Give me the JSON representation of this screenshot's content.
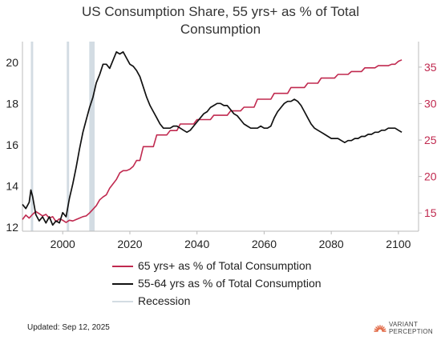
{
  "chart_data": {
    "type": "line",
    "title_lines": [
      "US Consumption Share, 55 yrs+ as % of Total",
      "Consumption"
    ],
    "x_range": [
      1988,
      2106
    ],
    "x_ticks": [
      2000,
      2020,
      2040,
      2060,
      2080,
      2100
    ],
    "y_left": {
      "range": [
        11.8,
        21.0
      ],
      "ticks": [
        12,
        14,
        16,
        18,
        20
      ]
    },
    "y_right": {
      "range": [
        12.5,
        38.5
      ],
      "ticks": [
        15,
        20,
        25,
        30,
        35
      ],
      "color": "#c0294f"
    },
    "grid": false,
    "legend_position": "bottom",
    "recessions": [
      [
        1990.5,
        1991.2
      ],
      [
        2001.2,
        2001.9
      ],
      [
        2007.9,
        2009.5
      ]
    ],
    "series": [
      {
        "name": "65 yrs+ as % of Total Consumption",
        "axis": "right",
        "color": "#c0294f",
        "points": [
          [
            1988,
            14.1
          ],
          [
            1989,
            14.7
          ],
          [
            1990,
            14.3
          ],
          [
            1991,
            14.8
          ],
          [
            1992,
            15.2
          ],
          [
            1993,
            14.9
          ],
          [
            1994,
            14.6
          ],
          [
            1995,
            14.8
          ],
          [
            1996,
            14.3
          ],
          [
            1997,
            14.5
          ],
          [
            1998,
            13.8
          ],
          [
            1999,
            14.2
          ],
          [
            2000,
            14.0
          ],
          [
            2001,
            13.7
          ],
          [
            2002,
            14.0
          ],
          [
            2003,
            13.9
          ],
          [
            2004,
            14.1
          ],
          [
            2005,
            14.3
          ],
          [
            2006,
            14.5
          ],
          [
            2007,
            14.6
          ],
          [
            2008,
            15.0
          ],
          [
            2009,
            15.5
          ],
          [
            2010,
            16.0
          ],
          [
            2011,
            16.8
          ],
          [
            2012,
            17.2
          ],
          [
            2013,
            17.5
          ],
          [
            2014,
            18.4
          ],
          [
            2015,
            19.0
          ],
          [
            2016,
            19.6
          ],
          [
            2017,
            20.5
          ],
          [
            2018,
            20.8
          ],
          [
            2019,
            20.8
          ],
          [
            2020,
            21.0
          ],
          [
            2021,
            21.4
          ],
          [
            2022,
            22.2
          ],
          [
            2023,
            22.2
          ],
          [
            2024,
            24.1
          ],
          [
            2025,
            24.1
          ],
          [
            2026,
            24.1
          ],
          [
            2027,
            24.1
          ],
          [
            2028,
            25.7
          ],
          [
            2029,
            25.7
          ],
          [
            2030,
            25.7
          ],
          [
            2031,
            25.7
          ],
          [
            2032,
            26.3
          ],
          [
            2033,
            26.3
          ],
          [
            2034,
            26.3
          ],
          [
            2035,
            27.2
          ],
          [
            2036,
            27.2
          ],
          [
            2037,
            27.2
          ],
          [
            2038,
            27.2
          ],
          [
            2039,
            27.2
          ],
          [
            2040,
            27.8
          ],
          [
            2041,
            27.8
          ],
          [
            2042,
            27.8
          ],
          [
            2043,
            27.8
          ],
          [
            2044,
            27.8
          ],
          [
            2045,
            28.4
          ],
          [
            2046,
            28.4
          ],
          [
            2047,
            28.4
          ],
          [
            2048,
            28.4
          ],
          [
            2049,
            28.4
          ],
          [
            2050,
            29.0
          ],
          [
            2051,
            29.0
          ],
          [
            2052,
            29.0
          ],
          [
            2053,
            29.0
          ],
          [
            2054,
            29.5
          ],
          [
            2055,
            29.5
          ],
          [
            2056,
            29.5
          ],
          [
            2057,
            29.5
          ],
          [
            2058,
            30.6
          ],
          [
            2059,
            30.6
          ],
          [
            2060,
            30.6
          ],
          [
            2061,
            30.6
          ],
          [
            2062,
            30.6
          ],
          [
            2063,
            31.4
          ],
          [
            2064,
            31.4
          ],
          [
            2065,
            31.4
          ],
          [
            2066,
            31.4
          ],
          [
            2067,
            31.4
          ],
          [
            2068,
            32.2
          ],
          [
            2069,
            32.2
          ],
          [
            2070,
            32.2
          ],
          [
            2071,
            32.2
          ],
          [
            2072,
            32.2
          ],
          [
            2073,
            32.8
          ],
          [
            2074,
            32.8
          ],
          [
            2075,
            32.8
          ],
          [
            2076,
            32.8
          ],
          [
            2077,
            33.5
          ],
          [
            2078,
            33.5
          ],
          [
            2079,
            33.5
          ],
          [
            2080,
            33.5
          ],
          [
            2081,
            33.5
          ],
          [
            2082,
            34.0
          ],
          [
            2083,
            34.0
          ],
          [
            2084,
            34.0
          ],
          [
            2085,
            34.0
          ],
          [
            2086,
            34.4
          ],
          [
            2087,
            34.4
          ],
          [
            2088,
            34.4
          ],
          [
            2089,
            34.4
          ],
          [
            2090,
            34.9
          ],
          [
            2091,
            34.9
          ],
          [
            2092,
            34.9
          ],
          [
            2093,
            34.9
          ],
          [
            2094,
            35.2
          ],
          [
            2095,
            35.2
          ],
          [
            2096,
            35.2
          ],
          [
            2097,
            35.2
          ],
          [
            2098,
            35.4
          ],
          [
            2099,
            35.4
          ],
          [
            2100,
            35.8
          ],
          [
            2101,
            36.0
          ]
        ]
      },
      {
        "name": "55-64 yrs as % of Total Consumption",
        "axis": "left",
        "color": "#111111",
        "points": [
          [
            1988,
            13.1
          ],
          [
            1989,
            12.9
          ],
          [
            1990,
            13.2
          ],
          [
            1990.5,
            13.8
          ],
          [
            1991,
            13.5
          ],
          [
            1992,
            12.6
          ],
          [
            1993,
            12.3
          ],
          [
            1994,
            12.5
          ],
          [
            1995,
            12.2
          ],
          [
            1996,
            12.5
          ],
          [
            1997,
            12.1
          ],
          [
            1998,
            12.3
          ],
          [
            1999,
            12.2
          ],
          [
            2000,
            12.7
          ],
          [
            2001,
            12.5
          ],
          [
            2002,
            13.4
          ],
          [
            2003,
            14.1
          ],
          [
            2004,
            14.9
          ],
          [
            2005,
            15.8
          ],
          [
            2006,
            16.6
          ],
          [
            2007,
            17.2
          ],
          [
            2008,
            17.8
          ],
          [
            2009,
            18.3
          ],
          [
            2010,
            19.0
          ],
          [
            2011,
            19.4
          ],
          [
            2012,
            19.9
          ],
          [
            2013,
            19.9
          ],
          [
            2014,
            19.7
          ],
          [
            2015,
            20.1
          ],
          [
            2016,
            20.5
          ],
          [
            2017,
            20.4
          ],
          [
            2018,
            20.5
          ],
          [
            2019,
            20.2
          ],
          [
            2020,
            19.9
          ],
          [
            2021,
            19.8
          ],
          [
            2022,
            19.6
          ],
          [
            2023,
            19.3
          ],
          [
            2024,
            18.8
          ],
          [
            2025,
            18.3
          ],
          [
            2026,
            17.9
          ],
          [
            2027,
            17.6
          ],
          [
            2028,
            17.3
          ],
          [
            2029,
            17.0
          ],
          [
            2030,
            16.8
          ],
          [
            2031,
            16.8
          ],
          [
            2032,
            16.8
          ],
          [
            2033,
            16.9
          ],
          [
            2034,
            16.9
          ],
          [
            2035,
            16.8
          ],
          [
            2036,
            16.7
          ],
          [
            2037,
            16.6
          ],
          [
            2038,
            16.7
          ],
          [
            2039,
            16.9
          ],
          [
            2040,
            17.1
          ],
          [
            2041,
            17.3
          ],
          [
            2042,
            17.5
          ],
          [
            2043,
            17.6
          ],
          [
            2044,
            17.8
          ],
          [
            2045,
            17.9
          ],
          [
            2046,
            18.0
          ],
          [
            2047,
            18.0
          ],
          [
            2048,
            17.9
          ],
          [
            2049,
            17.9
          ],
          [
            2050,
            17.7
          ],
          [
            2051,
            17.5
          ],
          [
            2052,
            17.4
          ],
          [
            2053,
            17.2
          ],
          [
            2054,
            17.0
          ],
          [
            2055,
            16.9
          ],
          [
            2056,
            16.8
          ],
          [
            2057,
            16.8
          ],
          [
            2058,
            16.8
          ],
          [
            2059,
            16.9
          ],
          [
            2060,
            16.8
          ],
          [
            2061,
            16.8
          ],
          [
            2062,
            16.9
          ],
          [
            2063,
            17.3
          ],
          [
            2064,
            17.6
          ],
          [
            2065,
            17.8
          ],
          [
            2066,
            18.0
          ],
          [
            2067,
            18.1
          ],
          [
            2068,
            18.1
          ],
          [
            2069,
            18.2
          ],
          [
            2070,
            18.1
          ],
          [
            2071,
            17.9
          ],
          [
            2072,
            17.6
          ],
          [
            2073,
            17.3
          ],
          [
            2074,
            17.0
          ],
          [
            2075,
            16.8
          ],
          [
            2076,
            16.7
          ],
          [
            2077,
            16.6
          ],
          [
            2078,
            16.5
          ],
          [
            2079,
            16.4
          ],
          [
            2080,
            16.3
          ],
          [
            2081,
            16.3
          ],
          [
            2082,
            16.3
          ],
          [
            2083,
            16.2
          ],
          [
            2084,
            16.1
          ],
          [
            2085,
            16.2
          ],
          [
            2086,
            16.2
          ],
          [
            2087,
            16.3
          ],
          [
            2088,
            16.3
          ],
          [
            2089,
            16.4
          ],
          [
            2090,
            16.4
          ],
          [
            2091,
            16.5
          ],
          [
            2092,
            16.5
          ],
          [
            2093,
            16.6
          ],
          [
            2094,
            16.6
          ],
          [
            2095,
            16.7
          ],
          [
            2096,
            16.7
          ],
          [
            2097,
            16.8
          ],
          [
            2098,
            16.8
          ],
          [
            2099,
            16.8
          ],
          [
            2100,
            16.7
          ],
          [
            2101,
            16.6
          ]
        ]
      },
      {
        "name": "Recession",
        "color": "#d3dce3"
      }
    ]
  },
  "footer": {
    "updated": "Updated: Sep 12, 2025",
    "logo_line1": "VARIANT",
    "logo_line2": "PERCEPTION",
    "logo_color": "#e0603a"
  }
}
